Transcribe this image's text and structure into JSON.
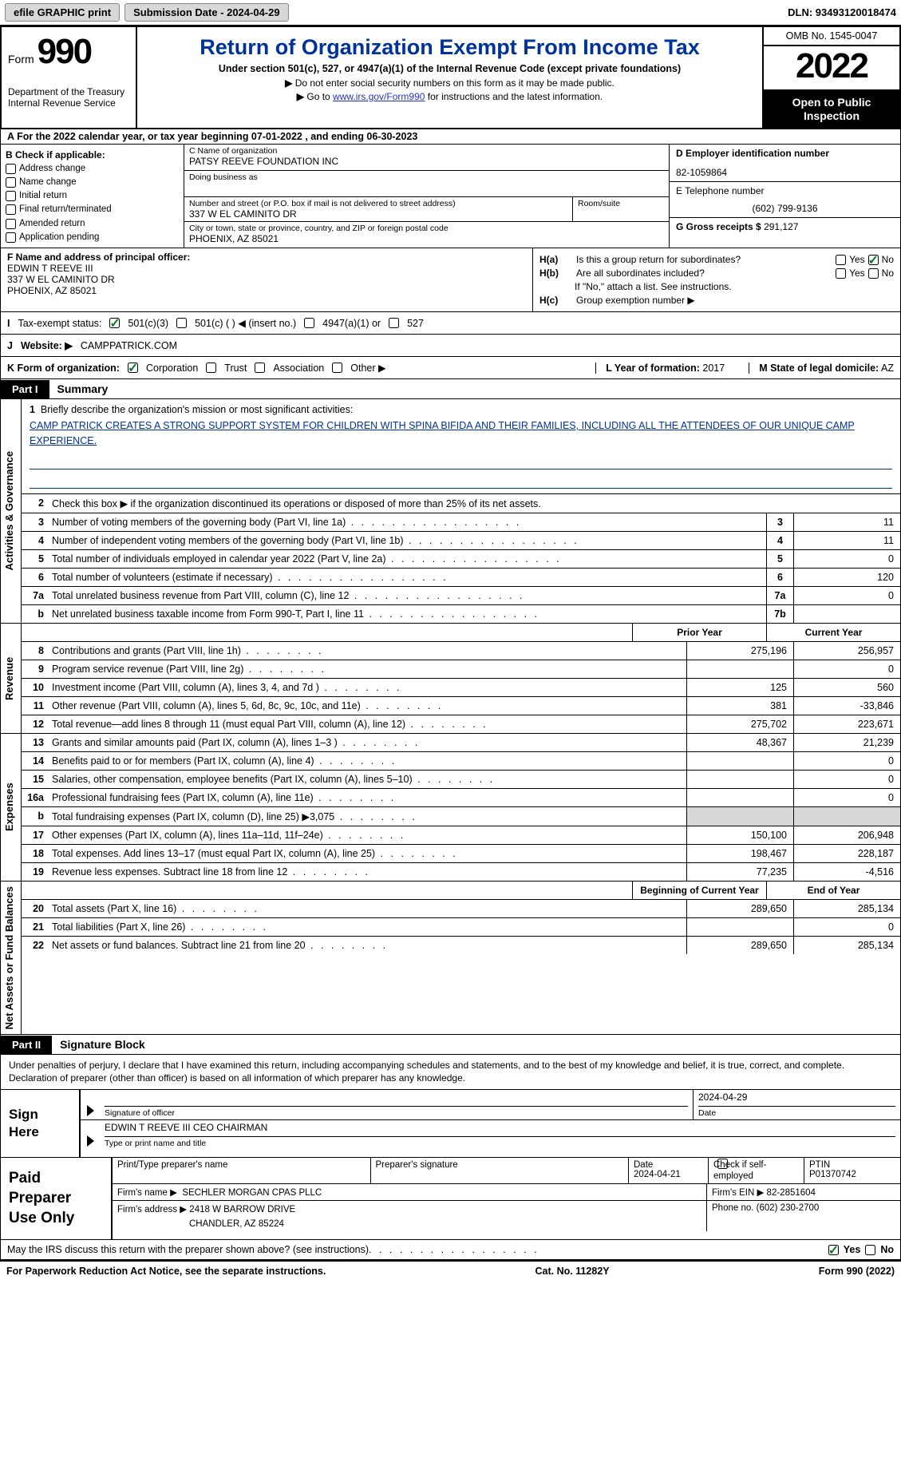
{
  "topbar": {
    "efile_label": "efile GRAPHIC print",
    "submission_label": "Submission Date - 2024-04-29",
    "dln_label": "DLN: 93493120018474"
  },
  "header": {
    "form_word": "Form",
    "form_number": "990",
    "dept1": "Department of the Treasury",
    "dept2": "Internal Revenue Service",
    "title": "Return of Organization Exempt From Income Tax",
    "subtitle": "Under section 501(c), 527, or 4947(a)(1) of the Internal Revenue Code (except private foundations)",
    "line1": "Do not enter social security numbers on this form as it may be made public.",
    "line2_pre": "Go to ",
    "line2_link": "www.irs.gov/Form990",
    "line2_post": " for instructions and the latest information.",
    "omb": "OMB No. 1545-0047",
    "year": "2022",
    "inspect1": "Open to Public",
    "inspect2": "Inspection"
  },
  "cal_year": "For the 2022 calendar year, or tax year beginning 07-01-2022     , and ending 06-30-2023",
  "boxB": {
    "header": "B Check if applicable:",
    "opts": [
      "Address change",
      "Name change",
      "Initial return",
      "Final return/terminated",
      "Amended return",
      "Application pending"
    ]
  },
  "boxC": {
    "name_label": "C Name of organization",
    "name": "PATSY REEVE FOUNDATION INC",
    "dba_label": "Doing business as",
    "dba": "",
    "street_label": "Number and street (or P.O. box if mail is not delivered to street address)",
    "room_label": "Room/suite",
    "street": "337 W EL CAMINITO DR",
    "city_label": "City or town, state or province, country, and ZIP or foreign postal code",
    "city": "PHOENIX, AZ  85021"
  },
  "boxD": {
    "ein_label": "D Employer identification number",
    "ein": "82-1059864",
    "tel_label": "E Telephone number",
    "tel": "(602) 799-9136",
    "gross_label": "G Gross receipts $",
    "gross": "291,127"
  },
  "boxF": {
    "label": "F  Name and address of principal officer:",
    "name": "EDWIN T REEVE III",
    "street": "337 W EL CAMINITO DR",
    "city": "PHOENIX, AZ  85021"
  },
  "boxH": {
    "a_label": "Is this a group return for subordinates?",
    "b_label": "Are all subordinates included?",
    "b_note": "If \"No,\" attach a list. See instructions.",
    "c_label": "Group exemption number ▶",
    "yes": "Yes",
    "no": "No"
  },
  "rowI": {
    "label": "Tax-exempt status:",
    "o1": "501(c)(3)",
    "o2": "501(c) (   ) ◀ (insert no.)",
    "o3": "4947(a)(1) or",
    "o4": "527"
  },
  "rowJ": {
    "label": "Website: ▶",
    "value": "CAMPPATRICK.COM"
  },
  "rowK": {
    "label": "K Form of organization:",
    "opts": [
      "Corporation",
      "Trust",
      "Association",
      "Other ▶"
    ],
    "year_label": "L Year of formation:",
    "year": "2017",
    "state_label": "M State of legal domicile:",
    "state": "AZ"
  },
  "parts": {
    "p1": "Part I",
    "p1_title": "Summary",
    "p2": "Part II",
    "p2_title": "Signature Block"
  },
  "vtabs": {
    "gov": "Activities & Governance",
    "rev": "Revenue",
    "exp": "Expenses",
    "net": "Net Assets or Fund Balances"
  },
  "summary": {
    "line1_label": "Briefly describe the organization's mission or most significant activities:",
    "mission": "CAMP PATRICK CREATES A STRONG SUPPORT SYSTEM FOR CHILDREN WITH SPINA BIFIDA AND THEIR FAMILIES, INCLUDING ALL THE ATTENDEES OF OUR UNIQUE CAMP EXPERIENCE.",
    "line2": "Check this box ▶     if the organization discontinued its operations or disposed of more than 25% of its net assets.",
    "prior_hdr": "Prior Year",
    "curr_hdr": "Current Year",
    "beg_hdr": "Beginning of Current Year",
    "end_hdr": "End of Year",
    "rows_gov": [
      {
        "n": "3",
        "d": "Number of voting members of the governing body (Part VI, line 1a)",
        "box": "3",
        "v": "11"
      },
      {
        "n": "4",
        "d": "Number of independent voting members of the governing body (Part VI, line 1b)",
        "box": "4",
        "v": "11"
      },
      {
        "n": "5",
        "d": "Total number of individuals employed in calendar year 2022 (Part V, line 2a)",
        "box": "5",
        "v": "0"
      },
      {
        "n": "6",
        "d": "Total number of volunteers (estimate if necessary)",
        "box": "6",
        "v": "120"
      },
      {
        "n": "7a",
        "d": "Total unrelated business revenue from Part VIII, column (C), line 12",
        "box": "7a",
        "v": "0"
      },
      {
        "n": "b",
        "d": "Net unrelated business taxable income from Form 990-T, Part I, line 11",
        "box": "7b",
        "v": ""
      }
    ],
    "rows_rev": [
      {
        "n": "8",
        "d": "Contributions and grants (Part VIII, line 1h)",
        "p": "275,196",
        "c": "256,957"
      },
      {
        "n": "9",
        "d": "Program service revenue (Part VIII, line 2g)",
        "p": "",
        "c": "0"
      },
      {
        "n": "10",
        "d": "Investment income (Part VIII, column (A), lines 3, 4, and 7d )",
        "p": "125",
        "c": "560"
      },
      {
        "n": "11",
        "d": "Other revenue (Part VIII, column (A), lines 5, 6d, 8c, 9c, 10c, and 11e)",
        "p": "381",
        "c": "-33,846"
      },
      {
        "n": "12",
        "d": "Total revenue—add lines 8 through 11 (must equal Part VIII, column (A), line 12)",
        "p": "275,702",
        "c": "223,671"
      }
    ],
    "rows_exp": [
      {
        "n": "13",
        "d": "Grants and similar amounts paid (Part IX, column (A), lines 1–3 )",
        "p": "48,367",
        "c": "21,239"
      },
      {
        "n": "14",
        "d": "Benefits paid to or for members (Part IX, column (A), line 4)",
        "p": "",
        "c": "0"
      },
      {
        "n": "15",
        "d": "Salaries, other compensation, employee benefits (Part IX, column (A), lines 5–10)",
        "p": "",
        "c": "0"
      },
      {
        "n": "16a",
        "d": "Professional fundraising fees (Part IX, column (A), line 11e)",
        "p": "",
        "c": "0"
      },
      {
        "n": "b",
        "d": "Total fundraising expenses (Part IX, column (D), line 25) ▶3,075",
        "p": "shade",
        "c": "shade"
      },
      {
        "n": "17",
        "d": "Other expenses (Part IX, column (A), lines 11a–11d, 11f–24e)",
        "p": "150,100",
        "c": "206,948"
      },
      {
        "n": "18",
        "d": "Total expenses. Add lines 13–17 (must equal Part IX, column (A), line 25)",
        "p": "198,467",
        "c": "228,187"
      },
      {
        "n": "19",
        "d": "Revenue less expenses. Subtract line 18 from line 12",
        "p": "77,235",
        "c": "-4,516"
      }
    ],
    "rows_net": [
      {
        "n": "20",
        "d": "Total assets (Part X, line 16)",
        "p": "289,650",
        "c": "285,134"
      },
      {
        "n": "21",
        "d": "Total liabilities (Part X, line 26)",
        "p": "",
        "c": "0"
      },
      {
        "n": "22",
        "d": "Net assets or fund balances. Subtract line 21 from line 20",
        "p": "289,650",
        "c": "285,134"
      }
    ]
  },
  "sig": {
    "intro": "Under penalties of perjury, I declare that I have examined this return, including accompanying schedules and statements, and to the best of my knowledge and belief, it is true, correct, and complete. Declaration of preparer (other than officer) is based on all information of which preparer has any knowledge.",
    "sign_here": "Sign Here",
    "sig_officer_lbl": "Signature of officer",
    "date_lbl": "Date",
    "sig_date": "2024-04-29",
    "name_title": "EDWIN T REEVE III CEO CHAIRMAN",
    "name_lbl": "Type or print name and title"
  },
  "prep": {
    "header": "Paid Preparer Use Only",
    "print_lbl": "Print/Type preparer's name",
    "sig_lbl": "Preparer's signature",
    "date_lbl": "Date",
    "date": "2024-04-21",
    "check_lbl": "Check        if self-employed",
    "ptin_lbl": "PTIN",
    "ptin": "P01370742",
    "firm_name_lbl": "Firm's name     ▶",
    "firm_name": "SECHLER MORGAN CPAS PLLC",
    "firm_ein_lbl": "Firm's EIN ▶",
    "firm_ein": "82-2851604",
    "firm_addr_lbl": "Firm's address ▶",
    "firm_addr1": "2418 W BARROW DRIVE",
    "firm_addr2": "CHANDLER, AZ  85224",
    "phone_lbl": "Phone no.",
    "phone": "(602) 230-2700"
  },
  "discuss": {
    "text": "May the IRS discuss this return with the preparer shown above? (see instructions)",
    "yes": "Yes",
    "no": "No"
  },
  "footer": {
    "left": "For Paperwork Reduction Act Notice, see the separate instructions.",
    "mid": "Cat. No. 11282Y",
    "right": "Form 990 (2022)"
  }
}
